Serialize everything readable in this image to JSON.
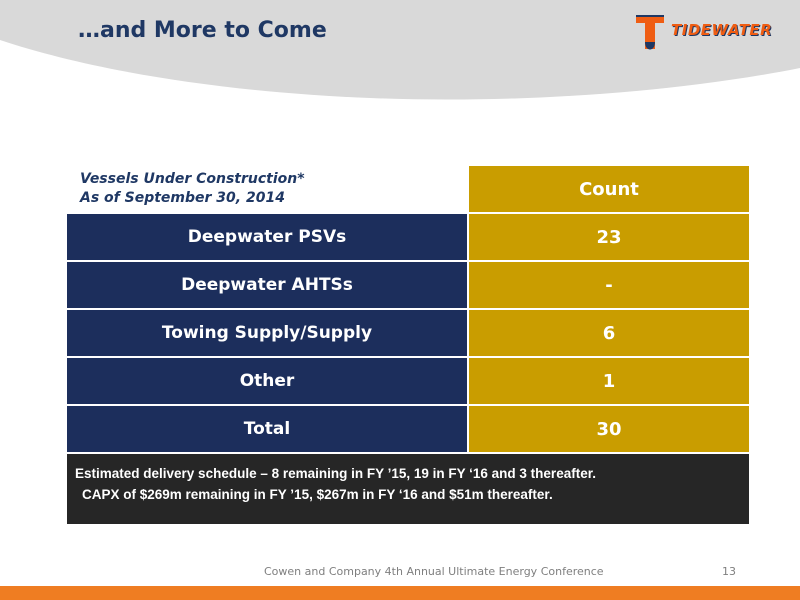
{
  "slide": {
    "title": "…and More to Come",
    "logo_text": "TIDEWATER"
  },
  "table": {
    "caption_line1": "Vessels Under Construction*",
    "caption_line2": "As of September 30, 2014",
    "column_header": "Count",
    "rows": [
      {
        "label": "Deepwater PSVs",
        "value": "23"
      },
      {
        "label": "Deepwater AHTSs",
        "value": "-"
      },
      {
        "label": "Towing Supply/Supply",
        "value": "6"
      },
      {
        "label": "Other",
        "value": "1"
      },
      {
        "label": "Total",
        "value": "30"
      }
    ]
  },
  "note": {
    "line1": "Estimated delivery schedule – 8 remaining in FY ’15, 19 in FY ‘16 and 3 thereafter.",
    "line2": "CAPX of $269m remaining in FY ’15, $267m in FY ‘16 and $51m thereafter."
  },
  "footer": {
    "conference": "Cowen and Company 4th Annual Ultimate Energy Conference",
    "page_number": "13"
  },
  "colors": {
    "navy": "#1c2e5c",
    "gold": "#c99d00",
    "orange": "#ef7d22",
    "dark_note": "#262626"
  }
}
